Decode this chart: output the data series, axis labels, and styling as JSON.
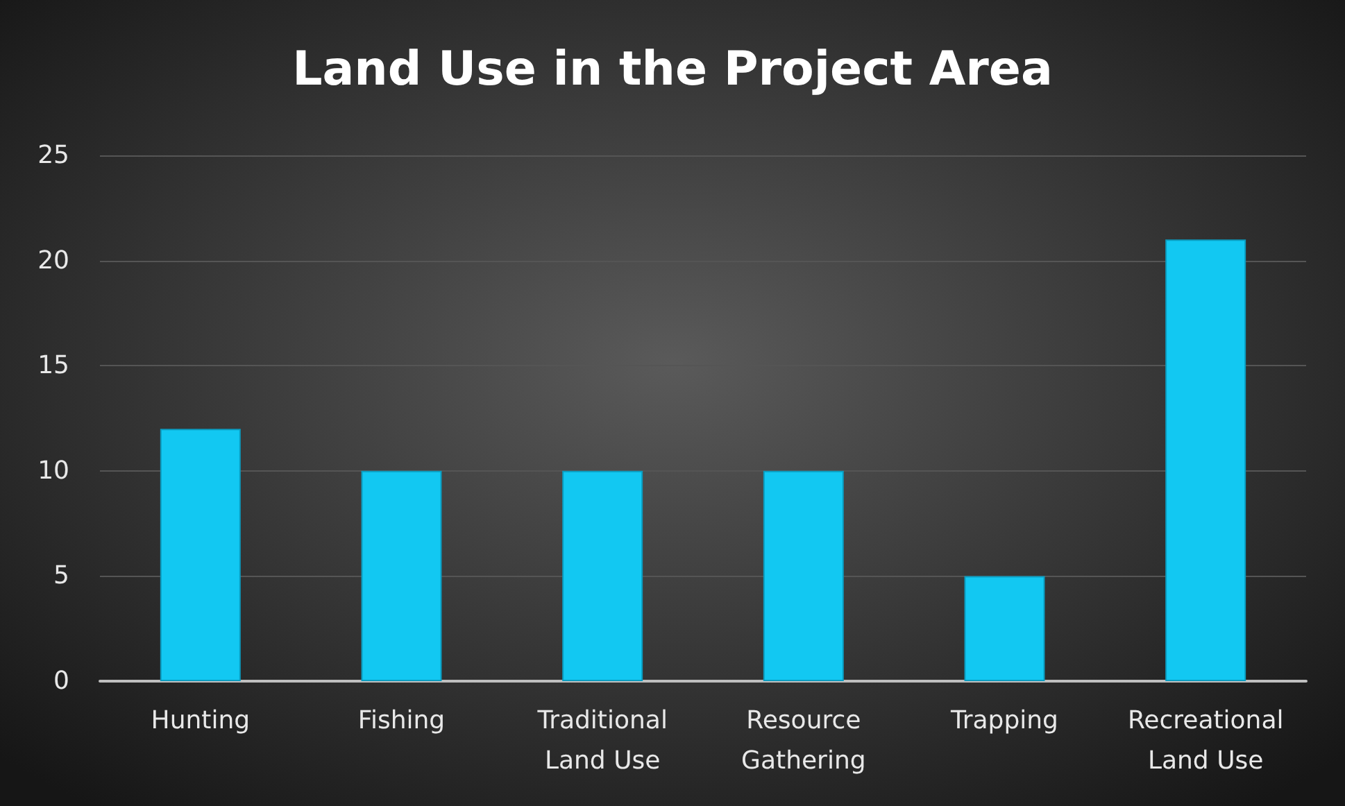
{
  "chart_data": {
    "type": "bar",
    "title": "Land Use in the Project Area",
    "categories": [
      "Hunting",
      "Fishing",
      "Traditional\nLand Use",
      "Resource\nGathering",
      "Trapping",
      "Recreational\nLand Use"
    ],
    "values": [
      12,
      10,
      10,
      10,
      5,
      21
    ],
    "color": "#12c8f2",
    "ylim": [
      0,
      25
    ],
    "yticks": [
      0,
      5,
      10,
      15,
      20,
      25
    ],
    "grid": "y"
  }
}
